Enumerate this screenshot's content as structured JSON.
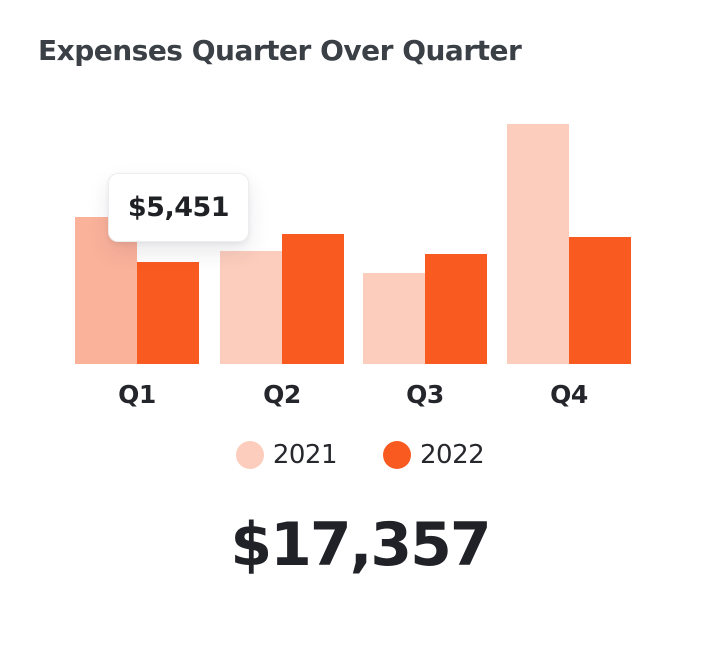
{
  "title": "Expenses Quarter Over Quarter",
  "tooltip": {
    "text": "$5,451",
    "category": "Q1",
    "series": "2021"
  },
  "total": "$17,357",
  "colors": {
    "background": "#FFFFFF",
    "series_2021": "#FCCDBD",
    "series_2021_highlight": "#FBB29B",
    "series_2022": "#F95A20",
    "title_text": "#3B4046",
    "label_text": "#24262B",
    "total_text": "#202227"
  },
  "chart_data": {
    "type": "bar",
    "title": "Expenses Quarter Over Quarter",
    "categories": [
      "Q1",
      "Q2",
      "Q3",
      "Q4"
    ],
    "series": [
      {
        "name": "2021",
        "color": "#FCCDBD",
        "values": [
          5451,
          4190,
          3374,
          8899
        ]
      },
      {
        "name": "2022",
        "color": "#F95A20",
        "values": [
          3780,
          4806,
          4072,
          4699
        ]
      }
    ],
    "highlight": {
      "category": "Q1",
      "series": "2021",
      "color": "#FBB29B"
    },
    "tooltip": {
      "text": "$5,451",
      "category": "Q1",
      "series": "2021"
    },
    "total_label": "$17,357",
    "xlabel": "",
    "ylabel": "",
    "ylim": [
      0,
      9000
    ],
    "grid": false,
    "axis_lines": false,
    "legend_position": "bottom"
  }
}
